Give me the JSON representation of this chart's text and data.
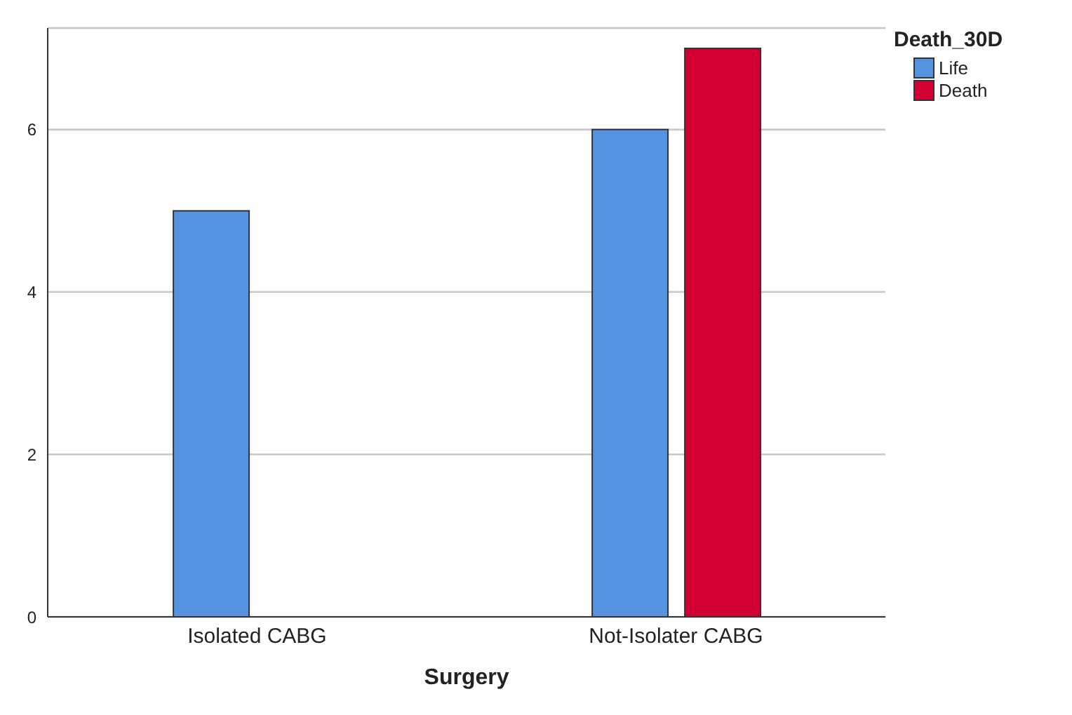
{
  "chart_data": {
    "type": "bar",
    "xlabel": "Surgery",
    "legend_title": "Death_30D",
    "categories": [
      "Isolated CABG",
      "Not-Isolater CABG"
    ],
    "series": [
      {
        "name": "Life",
        "color": "#5592e0",
        "values": [
          5,
          6
        ]
      },
      {
        "name": "Death",
        "color": "#d20032",
        "values": [
          null,
          7
        ]
      }
    ],
    "ylim": [
      0,
      7.25
    ],
    "yticks": [
      0,
      2,
      4,
      6
    ],
    "grid": "y",
    "legend": "top right"
  }
}
